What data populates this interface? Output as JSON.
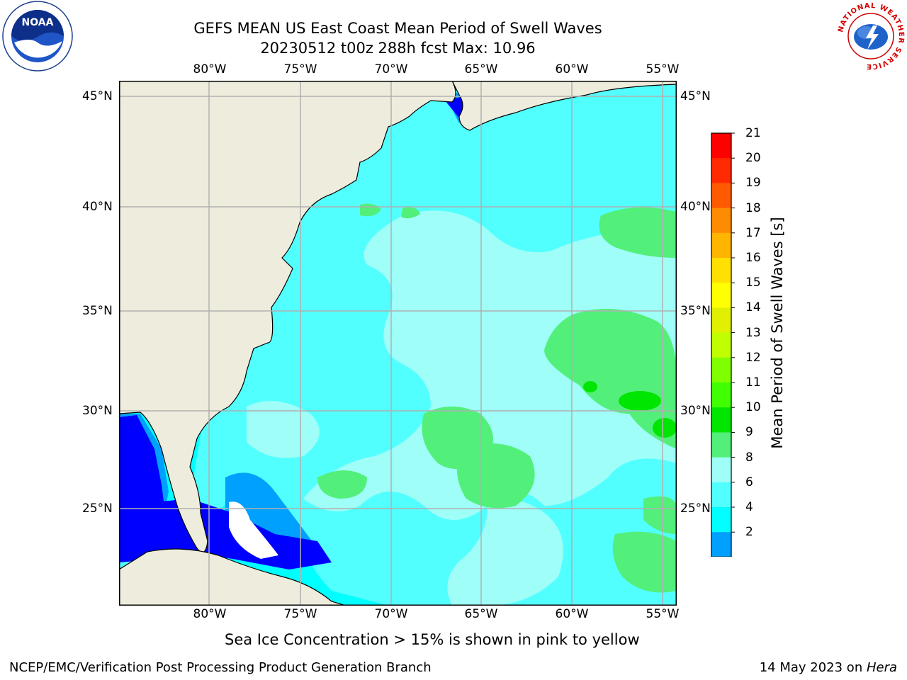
{
  "header": {
    "title_line1": "GEFS MEAN US East Coast Mean Period of Swell Waves",
    "title_line2": "20230512 t00z 288h fcst   Max: 10.96",
    "left_logo_text": "NOAA",
    "right_logo_text": "NATIONAL WEATHER SERVICE"
  },
  "map": {
    "lon_labels": [
      "80°W",
      "75°W",
      "70°W",
      "65°W",
      "60°W",
      "55°W"
    ],
    "lat_labels": [
      "45°N",
      "40°N",
      "35°N",
      "30°N",
      "25°N"
    ],
    "colors": {
      "land": "#eeeddd",
      "grid": "#b0b0b0"
    }
  },
  "colorbar": {
    "title": "Mean Period of Swell Waves [s]",
    "ticks": [
      "21",
      "20",
      "19",
      "18",
      "17",
      "16",
      "15",
      "14",
      "13",
      "12",
      "11",
      "10",
      "9",
      "8",
      "6",
      "4",
      "2"
    ],
    "colors": [
      "#ff0000",
      "#ff2a00",
      "#ff5a00",
      "#ff8c00",
      "#ffb400",
      "#ffe000",
      "#ffff00",
      "#e0f000",
      "#c0ff00",
      "#7fff00",
      "#40ff00",
      "#00e600",
      "#52f07a",
      "#9ffff8",
      "#52ffff",
      "#00ffff",
      "#00a0ff"
    ],
    "underflow_color": "#0000ff"
  },
  "footer": {
    "ice_note": "Sea Ice Concentration > 15% is shown in pink to yellow",
    "branch": "NCEP/EMC/Verification Post Processing Product Generation Branch",
    "date_prefix": "14 May 2023 on ",
    "machine": "Hera"
  }
}
